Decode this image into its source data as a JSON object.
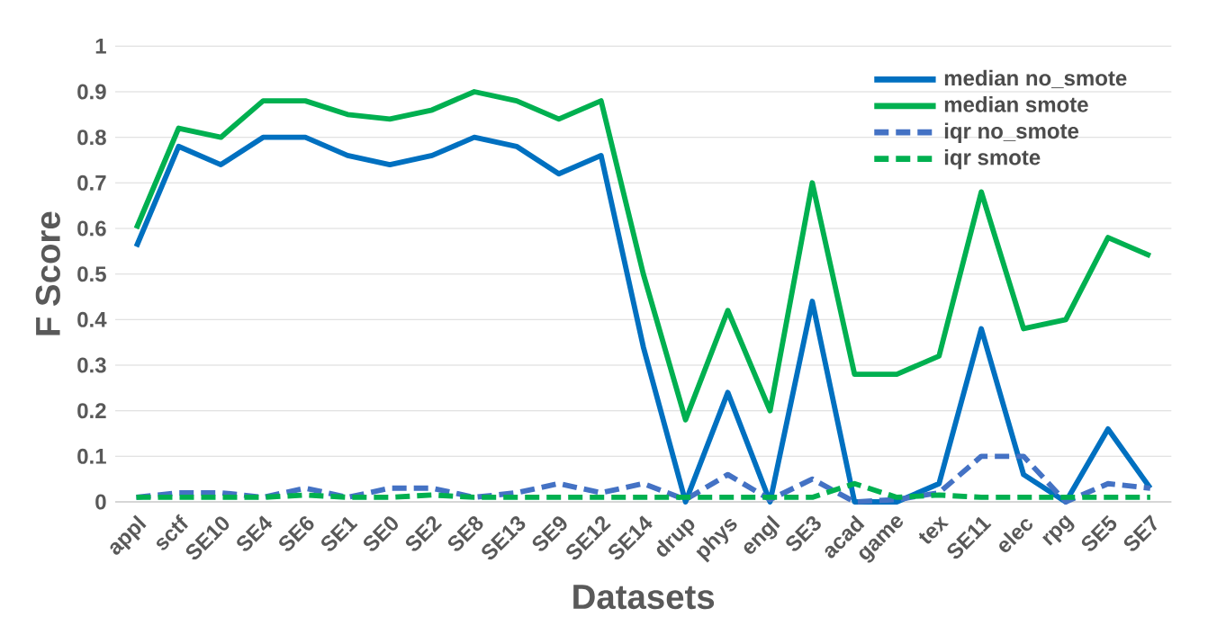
{
  "chart_data": {
    "type": "line",
    "xlabel": "Datasets",
    "ylabel": "F Score",
    "categories": [
      "appl",
      "sctf",
      "SE10",
      "SE4",
      "SE6",
      "SE1",
      "SE0",
      "SE2",
      "SE8",
      "SE13",
      "SE9",
      "SE12",
      "SE14",
      "drup",
      "phys",
      "engl",
      "SE3",
      "acad",
      "game",
      "tex",
      "SE11",
      "elec",
      "rpg",
      "SE5",
      "SE7"
    ],
    "series": [
      {
        "name": "median no_smote",
        "color": "#0070c0",
        "line_style": "solid",
        "values": [
          0.56,
          0.78,
          0.74,
          0.8,
          0.8,
          0.76,
          0.74,
          0.76,
          0.8,
          0.78,
          0.72,
          0.76,
          0.34,
          0,
          0.24,
          0,
          0.44,
          0,
          0,
          0.04,
          0.38,
          0.06,
          0,
          0.16,
          0.03
        ]
      },
      {
        "name": "median smote",
        "color": "#00b050",
        "line_style": "solid",
        "values": [
          0.6,
          0.82,
          0.8,
          0.88,
          0.88,
          0.85,
          0.84,
          0.86,
          0.9,
          0.88,
          0.84,
          0.88,
          0.5,
          0.18,
          0.42,
          0.2,
          0.7,
          0.28,
          0.28,
          0.32,
          0.68,
          0.38,
          0.4,
          0.58,
          0.54
        ]
      },
      {
        "name": "iqr no_smote",
        "color": "#4472c4",
        "line_style": "dashed",
        "values": [
          0.01,
          0.02,
          0.02,
          0.01,
          0.03,
          0.01,
          0.03,
          0.03,
          0.01,
          0.02,
          0.04,
          0.02,
          0.04,
          0.005,
          0.06,
          0.005,
          0.05,
          0,
          0.005,
          0.02,
          0.1,
          0.1,
          0,
          0.04,
          0.03
        ]
      },
      {
        "name": "iqr smote",
        "color": "#00b050",
        "line_style": "dashed",
        "values": [
          0.01,
          0.01,
          0.01,
          0.01,
          0.015,
          0.01,
          0.01,
          0.015,
          0.01,
          0.01,
          0.01,
          0.01,
          0.01,
          0.01,
          0.01,
          0.01,
          0.01,
          0.04,
          0.01,
          0.015,
          0.01,
          0.01,
          0.01,
          0.01,
          0.01
        ]
      }
    ],
    "ylim": [
      0,
      1
    ],
    "yticks": [
      0,
      0.1,
      0.2,
      0.3,
      0.4,
      0.5,
      0.6,
      0.7,
      0.8,
      0.9,
      1
    ],
    "grid": "y",
    "legend": "top right",
    "marker": "none"
  }
}
